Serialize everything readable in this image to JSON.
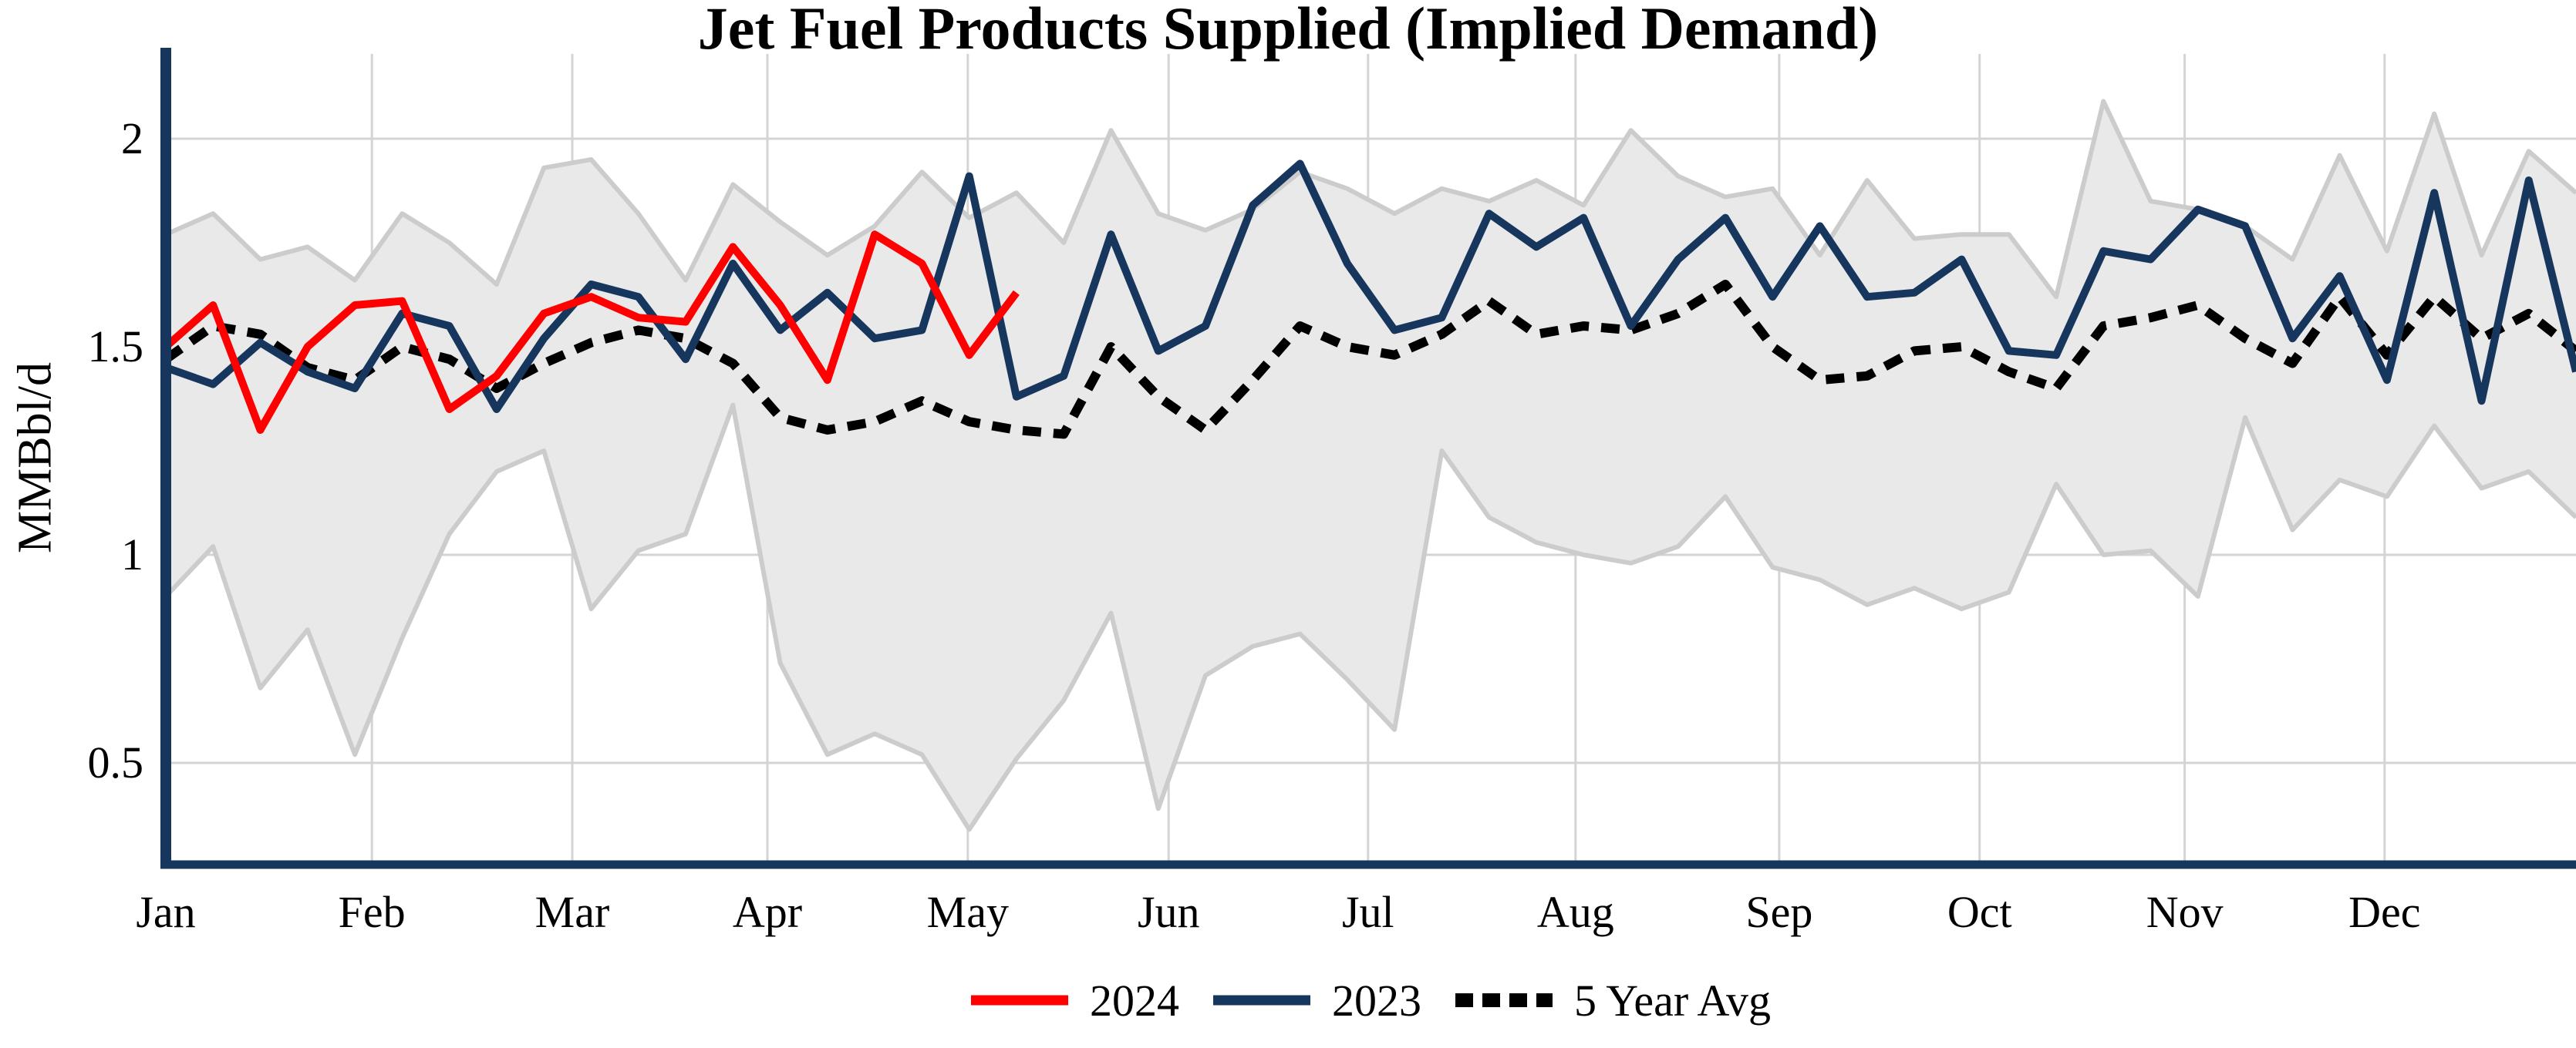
{
  "chart_data": {
    "type": "line",
    "title": "Jet Fuel Products Supplied (Implied Demand)",
    "ylabel": "MMBbl/d",
    "x_tick_labels": [
      "Jan",
      "Feb",
      "Mar",
      "Apr",
      "May",
      "Jun",
      "Jul",
      "Aug",
      "Sep",
      "Oct",
      "Nov",
      "Dec"
    ],
    "month_start_weeks": [
      0,
      4.36,
      8.6,
      12.73,
      16.97,
      21.22,
      25.44,
      29.83,
      34.14,
      38.38,
      42.72,
      46.95
    ],
    "weeks": 52,
    "y_ticks": [
      0.5,
      1,
      1.5,
      2
    ],
    "ylim": [
      0.26,
      2.21
    ],
    "grid": true,
    "grid_color": "#d4d4d4",
    "axis_color": "#17365d",
    "legend_position": "bottom-center",
    "series": [
      {
        "name": "2024",
        "color": "#ff0000",
        "style": "solid",
        "width": 10,
        "values": [
          1.5,
          1.6,
          1.3,
          1.5,
          1.6,
          1.61,
          1.35,
          1.43,
          1.58,
          1.62,
          1.57,
          1.56,
          1.74,
          1.6,
          1.42,
          1.77,
          1.7,
          1.48,
          1.63
        ]
      },
      {
        "name": "2023",
        "color": "#17365d",
        "style": "solid",
        "width": 10,
        "values": [
          1.45,
          1.41,
          1.51,
          1.44,
          1.4,
          1.58,
          1.55,
          1.35,
          1.52,
          1.65,
          1.62,
          1.47,
          1.7,
          1.54,
          1.63,
          1.52,
          1.54,
          1.91,
          1.38,
          1.43,
          1.77,
          1.49,
          1.55,
          1.84,
          1.94,
          1.7,
          1.54,
          1.57,
          1.82,
          1.74,
          1.81,
          1.55,
          1.71,
          1.81,
          1.62,
          1.79,
          1.62,
          1.63,
          1.71,
          1.49,
          1.48,
          1.73,
          1.71,
          1.83,
          1.79,
          1.52,
          1.67,
          1.42,
          1.87,
          1.37,
          1.9,
          1.44
        ]
      },
      {
        "name": "5 Year Avg",
        "color": "#000000",
        "style": "dotted",
        "dash": "24 16",
        "width": 12,
        "values": [
          1.47,
          1.55,
          1.53,
          1.45,
          1.42,
          1.5,
          1.47,
          1.4,
          1.46,
          1.51,
          1.54,
          1.52,
          1.46,
          1.33,
          1.3,
          1.32,
          1.37,
          1.32,
          1.3,
          1.29,
          1.5,
          1.38,
          1.3,
          1.42,
          1.55,
          1.5,
          1.48,
          1.53,
          1.61,
          1.53,
          1.55,
          1.54,
          1.58,
          1.65,
          1.5,
          1.42,
          1.43,
          1.49,
          1.5,
          1.44,
          1.4,
          1.55,
          1.57,
          1.6,
          1.52,
          1.46,
          1.62,
          1.48,
          1.62,
          1.52,
          1.58,
          1.49
        ]
      }
    ],
    "band": {
      "name": "5 Year Range",
      "fill": "#e9e9e9",
      "edge": "#cccccc",
      "max": [
        1.77,
        1.82,
        1.71,
        1.74,
        1.66,
        1.82,
        1.75,
        1.65,
        1.93,
        1.95,
        1.82,
        1.66,
        1.89,
        1.8,
        1.72,
        1.79,
        1.92,
        1.81,
        1.87,
        1.75,
        2.02,
        1.82,
        1.78,
        1.83,
        1.92,
        1.88,
        1.82,
        1.88,
        1.85,
        1.9,
        1.84,
        2.02,
        1.91,
        1.86,
        1.88,
        1.72,
        1.9,
        1.76,
        1.77,
        1.77,
        1.62,
        2.09,
        1.85,
        1.83,
        1.79,
        1.71,
        1.96,
        1.73,
        2.06,
        1.72,
        1.97,
        1.87
      ],
      "min": [
        0.9,
        1.02,
        0.68,
        0.82,
        0.52,
        0.8,
        1.05,
        1.2,
        1.25,
        0.87,
        1.01,
        1.05,
        1.36,
        0.74,
        0.52,
        0.57,
        0.52,
        0.34,
        0.51,
        0.65,
        0.86,
        0.39,
        0.71,
        0.78,
        0.81,
        0.7,
        0.58,
        1.25,
        1.09,
        1.03,
        1.0,
        0.98,
        1.02,
        1.14,
        0.97,
        0.94,
        0.88,
        0.92,
        0.87,
        0.91,
        1.17,
        1.0,
        1.01,
        0.9,
        1.33,
        1.06,
        1.18,
        1.14,
        1.31,
        1.16,
        1.2,
        1.09
      ]
    }
  }
}
